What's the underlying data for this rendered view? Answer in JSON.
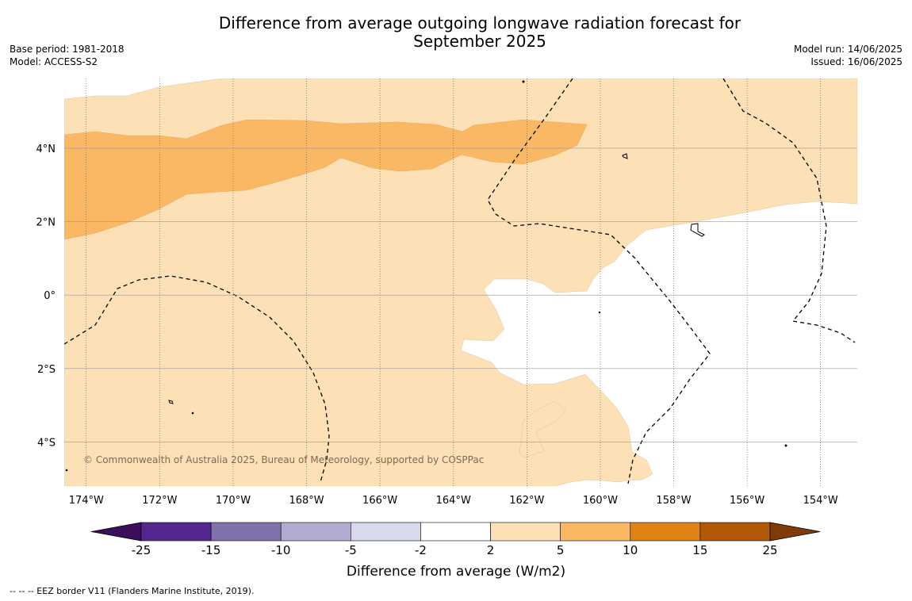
{
  "title_line1": "Difference from average outgoing longwave radiation forecast for",
  "title_line2": "September 2025",
  "meta_left": {
    "base_period": "Base period: 1981-2018",
    "model": "Model: ACCESS-S2"
  },
  "meta_right": {
    "model_run": "Model run: 14/06/2025",
    "issued": "Issued: 16/06/2025"
  },
  "map": {
    "lon_range": [
      -174.6,
      -153.0
    ],
    "lat_range": [
      -5.2,
      5.9
    ],
    "lon_ticks": [
      "174°W",
      "172°W",
      "170°W",
      "168°W",
      "166°W",
      "164°W",
      "162°W",
      "160°W",
      "158°W",
      "156°W",
      "154°W"
    ],
    "lat_ticks": [
      "4°N",
      "2°N",
      "0°",
      "2°S",
      "4°S"
    ],
    "copyright": "© Commonwealth of Australia 2025, Bureau of Meteorology, supported by COSPPac",
    "colors": {
      "band_2_5": "#fde0b6",
      "band_5_10": "#fbb864"
    }
  },
  "colorbar": {
    "label": "Difference from average (W/m2)",
    "ticks": [
      "-25",
      "-15",
      "-10",
      "-5",
      "-2",
      "2",
      "5",
      "10",
      "15",
      "25"
    ],
    "colors": [
      "#3b0f5a",
      "#54278f",
      "#8073ac",
      "#b2abd2",
      "#d8daeb",
      "#ffffff",
      "#fde0b6",
      "#fbb864",
      "#e08214",
      "#b35806",
      "#7f3b08"
    ]
  },
  "footer": "--  --  -- EEZ border V11 (Flanders Marine Institute, 2019)."
}
